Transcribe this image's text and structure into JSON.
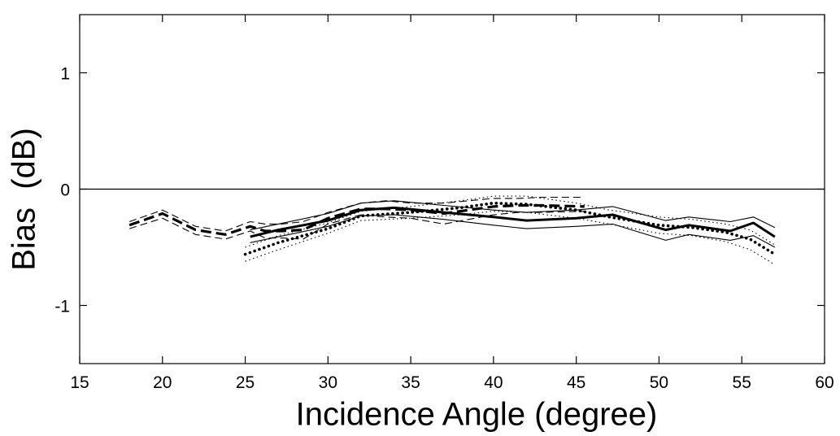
{
  "chart_data": {
    "type": "line",
    "xlabel": "Incidence Angle (degree)",
    "ylabel": "Bias  (dB)",
    "xlim": [
      15,
      60
    ],
    "ylim": [
      -1.5,
      1.5
    ],
    "xticks": [
      "15",
      "20",
      "25",
      "30",
      "35",
      "40",
      "45",
      "50",
      "55",
      "60"
    ],
    "yticks": [
      "1",
      "0",
      "-1"
    ],
    "grid": false,
    "legend": "none",
    "zero_line": 0,
    "series": [
      {
        "style": "thin-dashed",
        "x": [
          18,
          20,
          22,
          23.8,
          25.3,
          26.2,
          27.2,
          28.5,
          30,
          32,
          33.5,
          35,
          37,
          40,
          41.5,
          43,
          45.5
        ],
        "y": [
          -0.28,
          -0.18,
          -0.32,
          -0.36,
          -0.28,
          -0.3,
          -0.3,
          -0.28,
          -0.2,
          -0.12,
          -0.1,
          -0.12,
          -0.12,
          -0.08,
          -0.08,
          -0.07,
          -0.07
        ]
      },
      {
        "style": "thin-dashed",
        "x": [
          18,
          20,
          22,
          23.8,
          25.3,
          26.2,
          27.2,
          28.5,
          30,
          32,
          33.5,
          35,
          37,
          40,
          41.5,
          43,
          45.5
        ],
        "y": [
          -0.34,
          -0.25,
          -0.39,
          -0.43,
          -0.36,
          -0.42,
          -0.42,
          -0.43,
          -0.3,
          -0.22,
          -0.24,
          -0.25,
          -0.3,
          -0.22,
          -0.2,
          -0.2,
          -0.19
        ]
      },
      {
        "style": "thick-dashed",
        "x": [
          18,
          20,
          22,
          23.8,
          25.3,
          26.2,
          27.2,
          28.5,
          30,
          32,
          33.5,
          35,
          37,
          40,
          41.5,
          43,
          45.5
        ],
        "y": [
          -0.31,
          -0.21,
          -0.35,
          -0.39,
          -0.32,
          -0.36,
          -0.36,
          -0.35,
          -0.25,
          -0.17,
          -0.17,
          -0.18,
          -0.21,
          -0.15,
          -0.14,
          -0.14,
          -0.15
        ]
      },
      {
        "style": "thin-dotted",
        "x": [
          25,
          27,
          30,
          32,
          35,
          38,
          40,
          42,
          45,
          47,
          50,
          52,
          54,
          55.5,
          57
        ],
        "y": [
          -0.5,
          -0.4,
          -0.29,
          -0.19,
          -0.15,
          -0.1,
          -0.06,
          -0.06,
          -0.12,
          -0.18,
          -0.24,
          -0.26,
          -0.3,
          -0.35,
          -0.48
        ]
      },
      {
        "style": "thin-dotted",
        "x": [
          25,
          27,
          30,
          32,
          35,
          38,
          40,
          42,
          45,
          47,
          50,
          52,
          54,
          55.5,
          57
        ],
        "y": [
          -0.62,
          -0.52,
          -0.38,
          -0.27,
          -0.25,
          -0.22,
          -0.19,
          -0.2,
          -0.25,
          -0.3,
          -0.38,
          -0.4,
          -0.45,
          -0.52,
          -0.65
        ]
      },
      {
        "style": "thick-dotted",
        "x": [
          25,
          27,
          30,
          32,
          35,
          38,
          40,
          42,
          45,
          47,
          50,
          52,
          54,
          55.5,
          57
        ],
        "y": [
          -0.56,
          -0.46,
          -0.34,
          -0.23,
          -0.2,
          -0.16,
          -0.12,
          -0.13,
          -0.18,
          -0.24,
          -0.31,
          -0.33,
          -0.37,
          -0.43,
          -0.56
        ]
      },
      {
        "style": "thin-solid",
        "x": [
          25.3,
          27,
          30,
          32,
          34,
          37,
          40,
          42,
          45,
          47.2,
          50.4,
          51.8,
          54.3,
          55.7,
          57
        ],
        "y": [
          -0.35,
          -0.3,
          -0.21,
          -0.12,
          -0.1,
          -0.14,
          -0.18,
          -0.2,
          -0.18,
          -0.15,
          -0.27,
          -0.24,
          -0.28,
          -0.24,
          -0.33
        ]
      },
      {
        "style": "thin-solid",
        "x": [
          25.3,
          27,
          30,
          32,
          34,
          37,
          40,
          42,
          45,
          47.2,
          50.4,
          51.8,
          54.3,
          55.7,
          57
        ],
        "y": [
          -0.46,
          -0.41,
          -0.32,
          -0.23,
          -0.22,
          -0.26,
          -0.31,
          -0.34,
          -0.32,
          -0.3,
          -0.44,
          -0.39,
          -0.44,
          -0.4,
          -0.5
        ]
      },
      {
        "style": "thick-solid",
        "x": [
          25.3,
          27,
          30,
          32,
          34,
          37,
          40,
          42,
          45,
          47.2,
          50.4,
          51.8,
          54.3,
          55.7,
          57
        ],
        "y": [
          -0.41,
          -0.35,
          -0.27,
          -0.18,
          -0.16,
          -0.2,
          -0.24,
          -0.27,
          -0.25,
          -0.22,
          -0.35,
          -0.31,
          -0.36,
          -0.29,
          -0.41
        ]
      }
    ]
  }
}
